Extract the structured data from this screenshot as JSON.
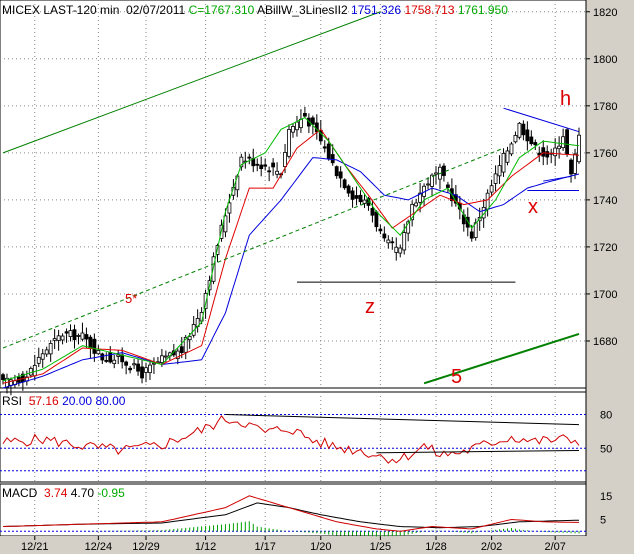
{
  "header": {
    "symbol": "MICEX LAST-120 min",
    "date": "02/07/2011",
    "close_text": "C=1767.310",
    "indicator_name": "ABillW_3LinesII2",
    "ind_values": [
      "1751.326",
      "1758.713",
      "1761.950"
    ]
  },
  "rsi_header": {
    "name": "RSI",
    "v1": "57.16",
    "v2": "20.00",
    "v3": "80.00"
  },
  "macd_header": {
    "name": "MACD",
    "v1": "3.74",
    "v2": "4.70",
    "v3": "-0.95"
  },
  "annotations": {
    "h": "h",
    "x": "x",
    "z": "z",
    "five": "5",
    "five_star": "5*"
  },
  "colors": {
    "up": "#000000",
    "down": "#000000",
    "ma_fast": "#00bb00",
    "ma_mid": "#e00000",
    "ma_slow": "#0000dd",
    "channel": "#008000",
    "annotation": "#d00000",
    "rsi": "#d00000",
    "macd_hist": "#00a000"
  },
  "chart_data": [
    {
      "type": "candlestick",
      "title": "MICEX LAST-120 min",
      "ylim": [
        1660,
        1825
      ],
      "y_ticks": [
        1680,
        1700,
        1720,
        1740,
        1760,
        1780,
        1800,
        1820
      ],
      "x_ticks": [
        "12/21",
        "12/24",
        "12/29",
        "1/12",
        "1/17",
        "1/20",
        "1/25",
        "1/28",
        "2/02",
        "2/07"
      ],
      "close_anchors": [
        [
          0,
          1662
        ],
        [
          6,
          1665
        ],
        [
          10,
          1675
        ],
        [
          15,
          1683
        ],
        [
          20,
          1682
        ],
        [
          25,
          1673
        ],
        [
          30,
          1672
        ],
        [
          35,
          1666
        ],
        [
          40,
          1672
        ],
        [
          45,
          1676
        ],
        [
          50,
          1694
        ],
        [
          55,
          1728
        ],
        [
          60,
          1758
        ],
        [
          65,
          1755
        ],
        [
          70,
          1752
        ],
        [
          72,
          1770
        ],
        [
          76,
          1776
        ],
        [
          80,
          1765
        ],
        [
          84,
          1752
        ],
        [
          88,
          1742
        ],
        [
          92,
          1738
        ],
        [
          96,
          1722
        ],
        [
          100,
          1718
        ],
        [
          103,
          1738
        ],
        [
          107,
          1748
        ],
        [
          110,
          1752
        ],
        [
          114,
          1738
        ],
        [
          118,
          1725
        ],
        [
          122,
          1742
        ],
        [
          126,
          1758
        ],
        [
          130,
          1772
        ],
        [
          134,
          1762
        ],
        [
          138,
          1758
        ],
        [
          141,
          1768
        ],
        [
          143,
          1750
        ],
        [
          145,
          1767
        ]
      ],
      "ma_fast": [
        [
          0,
          1663
        ],
        [
          10,
          1668
        ],
        [
          20,
          1678
        ],
        [
          30,
          1674
        ],
        [
          40,
          1670
        ],
        [
          50,
          1688
        ],
        [
          56,
          1735
        ],
        [
          60,
          1755
        ],
        [
          66,
          1760
        ],
        [
          70,
          1770
        ],
        [
          76,
          1775
        ],
        [
          82,
          1765
        ],
        [
          88,
          1750
        ],
        [
          94,
          1735
        ],
        [
          100,
          1725
        ],
        [
          106,
          1740
        ],
        [
          112,
          1745
        ],
        [
          118,
          1728
        ],
        [
          124,
          1740
        ],
        [
          130,
          1758
        ],
        [
          136,
          1765
        ],
        [
          145,
          1763
        ]
      ],
      "ma_mid": [
        [
          0,
          1662
        ],
        [
          10,
          1666
        ],
        [
          20,
          1677
        ],
        [
          30,
          1676
        ],
        [
          40,
          1670
        ],
        [
          50,
          1678
        ],
        [
          56,
          1715
        ],
        [
          62,
          1745
        ],
        [
          68,
          1745
        ],
        [
          74,
          1762
        ],
        [
          80,
          1770
        ],
        [
          86,
          1755
        ],
        [
          92,
          1742
        ],
        [
          98,
          1728
        ],
        [
          104,
          1735
        ],
        [
          110,
          1742
        ],
        [
          116,
          1738
        ],
        [
          122,
          1740
        ],
        [
          128,
          1750
        ],
        [
          136,
          1760
        ],
        [
          145,
          1759
        ]
      ],
      "ma_slow": [
        [
          0,
          1660
        ],
        [
          10,
          1665
        ],
        [
          20,
          1672
        ],
        [
          30,
          1675
        ],
        [
          40,
          1670
        ],
        [
          50,
          1672
        ],
        [
          56,
          1692
        ],
        [
          62,
          1725
        ],
        [
          70,
          1740
        ],
        [
          78,
          1758
        ],
        [
          84,
          1757
        ],
        [
          90,
          1752
        ],
        [
          96,
          1742
        ],
        [
          102,
          1740
        ],
        [
          108,
          1745
        ],
        [
          114,
          1742
        ],
        [
          120,
          1735
        ],
        [
          126,
          1738
        ],
        [
          132,
          1745
        ],
        [
          138,
          1748
        ],
        [
          145,
          1751
        ]
      ],
      "trendlines": [
        {
          "name": "channel-upper",
          "points": [
            [
              0,
              1760
            ],
            [
              95,
              1820
            ]
          ]
        },
        {
          "name": "channel-lower",
          "points": [
            [
              106,
              1662
            ],
            [
              145,
              1683
            ]
          ]
        },
        {
          "name": "wave-5-star-line",
          "points": [
            [
              0,
              1677
            ],
            [
              126,
              1762
            ]
          ]
        },
        {
          "name": "support-z",
          "points": [
            [
              74,
              1705
            ],
            [
              129,
              1705
            ]
          ]
        },
        {
          "name": "h-resistance",
          "points": [
            [
              126,
              1779
            ],
            [
              145,
              1769
            ]
          ]
        },
        {
          "name": "x-support",
          "points": [
            [
              132,
              1744
            ],
            [
              145,
              1744
            ]
          ]
        },
        {
          "name": "x-short",
          "points": [
            [
              136,
              1748
            ],
            [
              143,
              1750
            ]
          ]
        }
      ]
    },
    {
      "type": "line",
      "title": "RSI",
      "ylim": [
        20,
        100
      ],
      "y_ticks": [
        50,
        80
      ],
      "levels": [
        80,
        50,
        30
      ],
      "series": [
        {
          "name": "RSI",
          "values_anchor": [
            [
              0,
              55
            ],
            [
              10,
              58
            ],
            [
              20,
              52
            ],
            [
              30,
              48
            ],
            [
              40,
              53
            ],
            [
              50,
              66
            ],
            [
              56,
              76
            ],
            [
              60,
              74
            ],
            [
              66,
              64
            ],
            [
              72,
              68
            ],
            [
              78,
              57
            ],
            [
              84,
              51
            ],
            [
              90,
              48
            ],
            [
              96,
              42
            ],
            [
              100,
              40
            ],
            [
              106,
              52
            ],
            [
              110,
              44
            ],
            [
              116,
              47
            ],
            [
              122,
              54
            ],
            [
              128,
              60
            ],
            [
              134,
              56
            ],
            [
              140,
              58
            ],
            [
              145,
              57
            ]
          ]
        }
      ],
      "trendlines": [
        {
          "name": "rsi-upper",
          "points": [
            [
              56,
              80
            ],
            [
              145,
              71
            ]
          ]
        },
        {
          "name": "rsi-lower",
          "points": [
            [
              94,
              46
            ],
            [
              145,
              48
            ]
          ]
        }
      ]
    },
    {
      "type": "line",
      "title": "MACD",
      "ylim": [
        -2,
        20
      ],
      "y_ticks": [
        15,
        5
      ],
      "series": [
        {
          "name": "MACD",
          "values_anchor": [
            [
              0,
              2
            ],
            [
              20,
              3
            ],
            [
              40,
              4
            ],
            [
              56,
              10
            ],
            [
              62,
              15
            ],
            [
              68,
              12
            ],
            [
              74,
              9
            ],
            [
              84,
              4
            ],
            [
              94,
              1
            ],
            [
              100,
              0
            ],
            [
              108,
              2
            ],
            [
              118,
              1
            ],
            [
              128,
              5
            ],
            [
              136,
              4
            ],
            [
              145,
              3.74
            ]
          ]
        },
        {
          "name": "Signal",
          "values_anchor": [
            [
              0,
              2
            ],
            [
              20,
              3
            ],
            [
              40,
              3.5
            ],
            [
              56,
              7
            ],
            [
              64,
              12
            ],
            [
              72,
              10
            ],
            [
              80,
              7
            ],
            [
              90,
              4
            ],
            [
              100,
              2
            ],
            [
              110,
              1.5
            ],
            [
              120,
              2
            ],
            [
              130,
              4
            ],
            [
              145,
              4.7
            ]
          ]
        }
      ]
    }
  ]
}
